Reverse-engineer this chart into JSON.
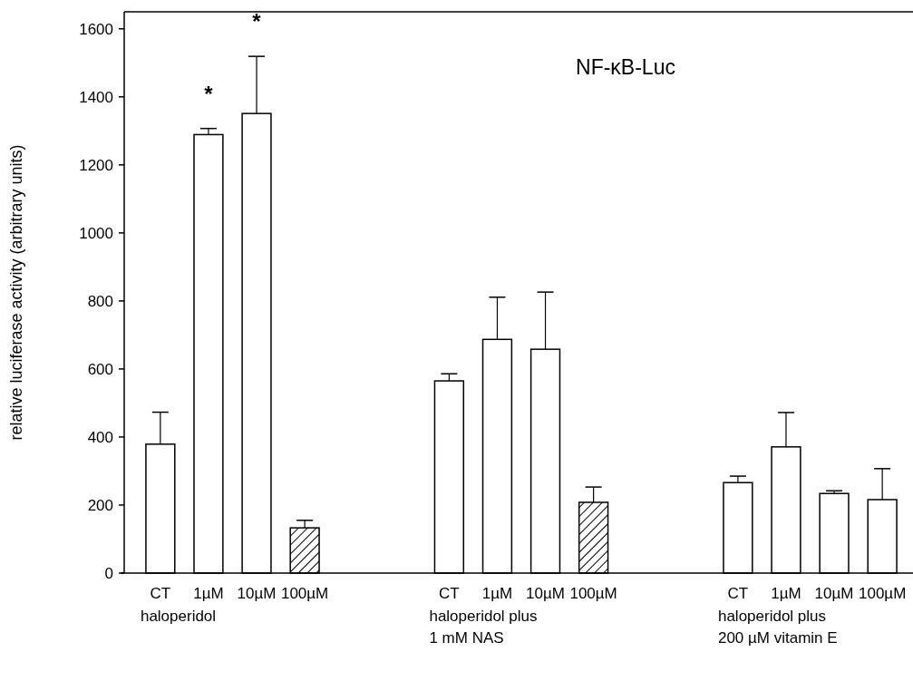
{
  "chart_data": {
    "type": "bar",
    "title": "NF-κB-Luc",
    "ylabel": "relative luciferase activity (arbitrary units)",
    "categories": [
      "CT",
      "1µM",
      "10µM",
      "100µM",
      null,
      null,
      "CT",
      "1µM",
      "10µM",
      "100µM",
      null,
      null,
      "CT",
      "1µM",
      "10µM",
      "100µM"
    ],
    "series": [
      {
        "type": "bar",
        "color": "#ffffff",
        "values": [
          379,
          1289,
          1351,
          null,
          null,
          null,
          565,
          687,
          658,
          null,
          null,
          null,
          266,
          371,
          234,
          216
        ],
        "errors": [
          [
            379,
            473
          ],
          [
            1289,
            1307
          ],
          [
            1351,
            1519
          ],
          null,
          null,
          null,
          [
            565,
            586
          ],
          [
            687,
            811
          ],
          [
            658,
            826
          ],
          null,
          null,
          null,
          [
            266,
            285
          ],
          [
            371,
            472
          ],
          [
            234,
            242
          ],
          [
            216,
            307
          ]
        ]
      },
      {
        "type": "bar",
        "color": "#000000",
        "values": [
          null,
          null,
          null,
          133,
          null,
          null,
          null,
          null,
          null,
          208,
          null,
          null,
          null,
          null,
          null,
          null
        ],
        "errors": [
          null,
          null,
          null,
          [
            133,
            155
          ],
          null,
          null,
          null,
          null,
          null,
          [
            208,
            253
          ],
          null,
          null,
          null,
          null,
          null,
          null
        ]
      }
    ],
    "ylim": [
      0,
      1650
    ],
    "yticks": [
      0,
      200,
      400,
      600,
      800,
      1000,
      1200,
      1400,
      1600
    ],
    "grid": false,
    "annotations": [
      "*",
      "*",
      "haloperidol",
      "haloperidol plus\n1 mM NAS",
      "haloperidol plus\n200 µM vitamin E"
    ]
  }
}
